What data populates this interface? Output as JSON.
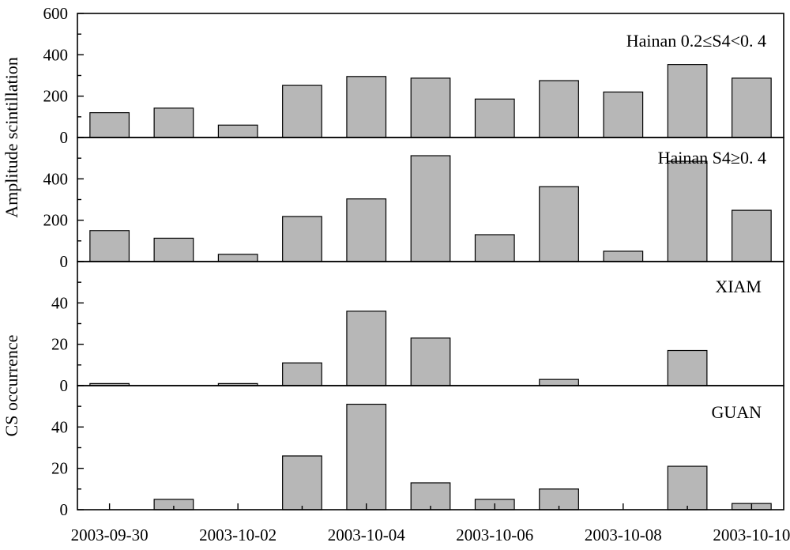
{
  "chart_data": {
    "type": "bar",
    "x_tick_labels": [
      "2003-09-30",
      "2003-10-02",
      "2003-10-04",
      "2003-10-06",
      "2003-10-08",
      "2003-10-10"
    ],
    "categories": [
      "2003-09-30",
      "2003-10-01",
      "2003-10-02",
      "2003-10-03",
      "2003-10-04",
      "2003-10-05",
      "2003-10-06",
      "2003-10-07",
      "2003-10-08",
      "2003-10-09",
      "2003-10-10"
    ],
    "bar_color": "#b7b7b7",
    "y_labels": [
      {
        "text": "Amplitude scintillation",
        "panels": [
          0,
          1
        ]
      },
      {
        "text": "CS occurrence",
        "panels": [
          2,
          3
        ]
      }
    ],
    "panels": [
      {
        "label": "Hainan 0.2≤S4<0. 4",
        "ylim": [
          0,
          600
        ],
        "yticks": [
          "0",
          "200",
          "400",
          "600"
        ],
        "values": [
          120,
          142,
          60,
          252,
          295,
          287,
          186,
          275,
          220,
          353,
          287
        ]
      },
      {
        "label": "Hainan S4≥0. 4",
        "ylim": [
          0,
          600
        ],
        "yticks": [
          "0",
          "200",
          "400"
        ],
        "values": [
          150,
          113,
          35,
          218,
          303,
          512,
          130,
          362,
          50,
          485,
          248
        ]
      },
      {
        "label": "XIAM",
        "ylim": [
          0,
          60
        ],
        "yticks": [
          "0",
          "20",
          "40"
        ],
        "values": [
          1,
          0,
          1,
          11,
          36,
          23,
          0,
          3,
          0,
          17,
          0
        ]
      },
      {
        "label": "GUAN",
        "ylim": [
          0,
          60
        ],
        "yticks": [
          "0",
          "20",
          "40"
        ],
        "values": [
          0,
          5,
          0,
          26,
          51,
          13,
          5,
          10,
          0,
          21,
          3
        ]
      }
    ]
  }
}
